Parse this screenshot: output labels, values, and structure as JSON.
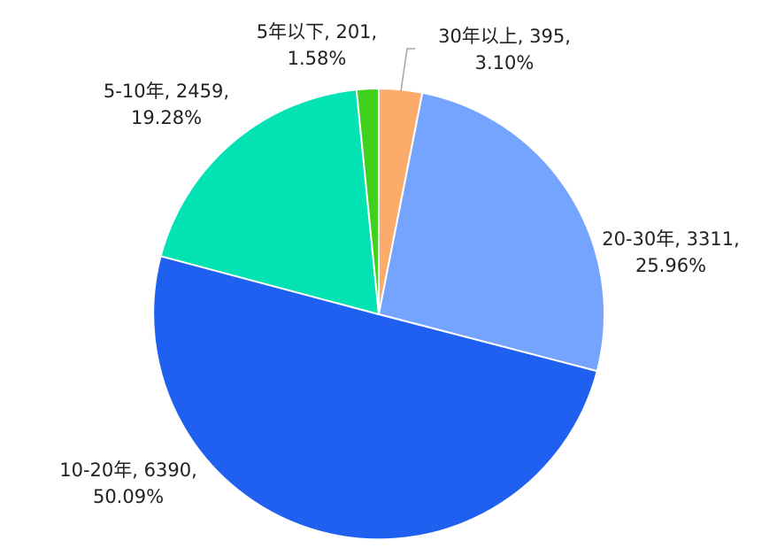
{
  "chart_data": {
    "type": "pie",
    "title": "",
    "start_angle_deg": 0,
    "direction": "clockwise",
    "slices": [
      {
        "label": "30年以上",
        "value": 395,
        "percent": "3.10%",
        "color": "#FBAC6B"
      },
      {
        "label": "20-30年",
        "value": 3311,
        "percent": "25.96%",
        "color": "#75A4FF"
      },
      {
        "label": "10-20年",
        "value": 6390,
        "percent": "50.09%",
        "color": "#1F60F0"
      },
      {
        "label": "5-10年",
        "value": 2459,
        "percent": "19.28%",
        "color": "#02E2B2"
      },
      {
        "label": "5年以下",
        "value": 201,
        "percent": "1.58%",
        "color": "#3FD11C"
      }
    ],
    "data_labels": [
      {
        "line1": "30年以上, 395,",
        "line2": "3.10%"
      },
      {
        "line1": "20-30年, 3311,",
        "line2": "25.96%"
      },
      {
        "line1": "10-20年, 6390,",
        "line2": "50.09%"
      },
      {
        "line1": "5-10年, 2459,",
        "line2": "19.28%"
      },
      {
        "line1": "5年以下, 201,",
        "line2": "1.58%"
      }
    ]
  }
}
